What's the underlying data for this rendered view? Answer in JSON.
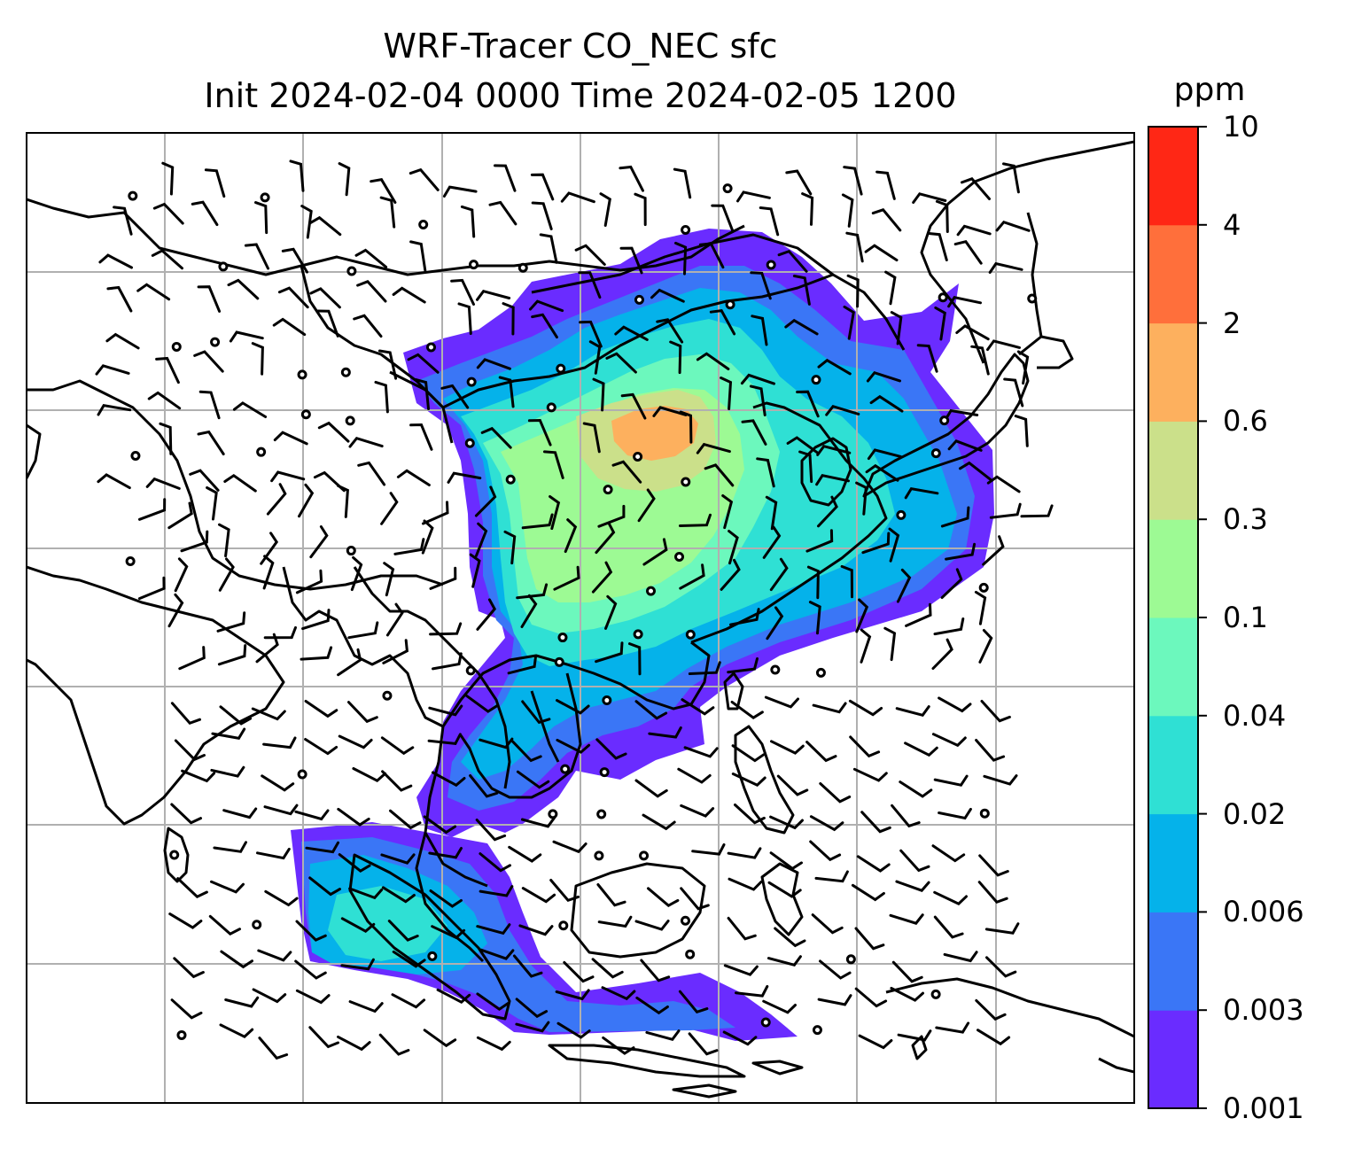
{
  "figure": {
    "title_line1": "WRF-Tracer CO_NEC sfc",
    "title_line2": "Init 2024-02-04 0000 Time 2024-02-05 1200"
  },
  "colorbar": {
    "unit": "ppm",
    "tick_labels": [
      "0.001",
      "0.003",
      "0.006",
      "0.02",
      "0.04",
      "0.1",
      "0.3",
      "0.6",
      "2",
      "4",
      "10"
    ],
    "colors": [
      "#6a2cff",
      "#3a76f6",
      "#05b2ea",
      "#2fe0d4",
      "#6cf8bd",
      "#9dfa94",
      "#cbe08a",
      "#fdb05e",
      "#ff6f3b",
      "#ff2715"
    ]
  },
  "map": {
    "projection": "lat-lon",
    "gridlines": true,
    "features": [
      "coastlines",
      "country-borders",
      "wind-barbs",
      "calm-wind-circles"
    ],
    "field": "CO_NEC surface tracer concentration",
    "frame_color": "#000000",
    "grid_color": "#b0b0b0"
  }
}
